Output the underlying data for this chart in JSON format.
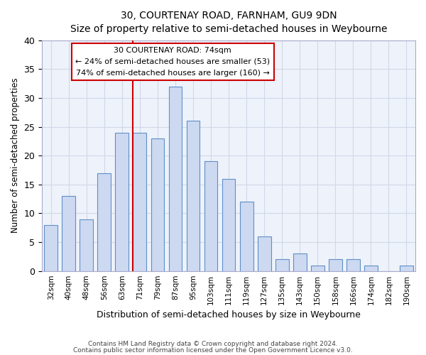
{
  "title1": "30, COURTENAY ROAD, FARNHAM, GU9 9DN",
  "title2": "Size of property relative to semi-detached houses in Weybourne",
  "xlabel": "Distribution of semi-detached houses by size in Weybourne",
  "ylabel": "Number of semi-detached properties",
  "footer1": "Contains HM Land Registry data © Crown copyright and database right 2024.",
  "footer2": "Contains public sector information licensed under the Open Government Licence v3.0.",
  "bar_color": "#ccd9f0",
  "bar_edge_color": "#6090c8",
  "categories": [
    "32sqm",
    "40sqm",
    "48sqm",
    "56sqm",
    "63sqm",
    "71sqm",
    "79sqm",
    "87sqm",
    "95sqm",
    "103sqm",
    "111sqm",
    "119sqm",
    "127sqm",
    "135sqm",
    "143sqm",
    "150sqm",
    "158sqm",
    "166sqm",
    "174sqm",
    "182sqm",
    "190sqm"
  ],
  "values": [
    8,
    13,
    9,
    17,
    24,
    24,
    23,
    32,
    26,
    19,
    16,
    12,
    6,
    2,
    3,
    1,
    2,
    2,
    1,
    0,
    1
  ],
  "ylim": [
    0,
    40
  ],
  "yticks": [
    0,
    5,
    10,
    15,
    20,
    25,
    30,
    35,
    40
  ],
  "property_label": "30 COURTENAY ROAD: 74sqm",
  "pct_smaller": 24,
  "n_smaller": 53,
  "pct_larger": 74,
  "n_larger": 160,
  "vline_color": "#cc0000",
  "annotation_box_facecolor": "#ffffff",
  "annotation_box_edgecolor": "#cc0000",
  "grid_color": "#d0d8e8",
  "background_color": "#eef2fa"
}
